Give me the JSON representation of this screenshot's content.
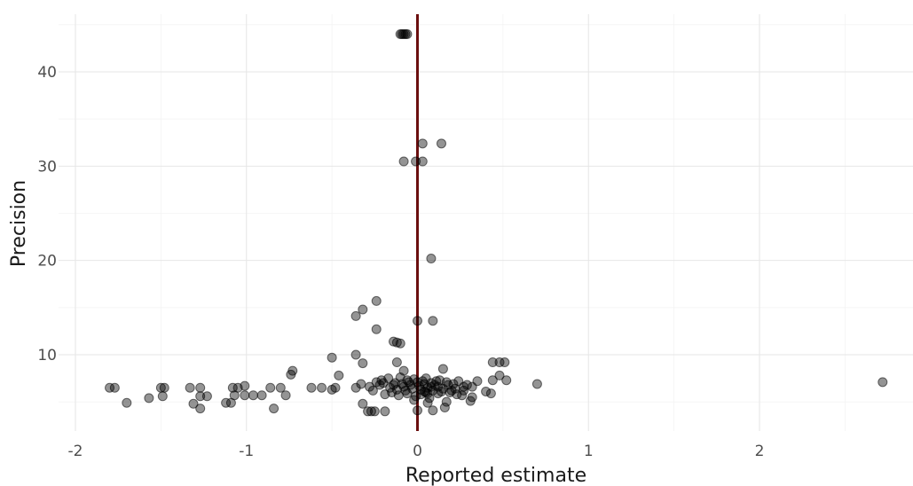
{
  "chart_data": {
    "type": "scatter",
    "title": "",
    "xlabel": "Reported estimate",
    "ylabel": "Precision",
    "xlim": [
      -2.0,
      2.8
    ],
    "ylim": [
      2.0,
      46.0
    ],
    "xticks": [
      -2,
      -1,
      0,
      1,
      2
    ],
    "xtick_labels": [
      "-2",
      "-1",
      "0",
      "1",
      "2"
    ],
    "yticks": [
      10,
      20,
      30,
      40
    ],
    "ytick_labels": [
      "10",
      "20",
      "30",
      "40"
    ],
    "grid": true,
    "legend": "none",
    "reference_line": {
      "orientation": "vertical",
      "x": 0,
      "color": "#6b0f0f"
    },
    "point_color": "#000000",
    "points": [
      [
        -0.1,
        44.0
      ],
      [
        -0.09,
        44.0
      ],
      [
        -0.08,
        44.0
      ],
      [
        -0.07,
        44.0
      ],
      [
        -0.06,
        44.0
      ],
      [
        0.03,
        32.4
      ],
      [
        0.14,
        32.4
      ],
      [
        -0.08,
        30.5
      ],
      [
        -0.01,
        30.5
      ],
      [
        0.03,
        30.5
      ],
      [
        0.08,
        20.2
      ],
      [
        -0.24,
        15.7
      ],
      [
        -0.32,
        14.8
      ],
      [
        -0.36,
        14.1
      ],
      [
        0.0,
        13.6
      ],
      [
        0.09,
        13.6
      ],
      [
        -0.24,
        12.7
      ],
      [
        -0.14,
        11.4
      ],
      [
        -0.12,
        11.3
      ],
      [
        -0.1,
        11.2
      ],
      [
        -0.36,
        10.0
      ],
      [
        -0.5,
        9.7
      ],
      [
        -0.32,
        9.1
      ],
      [
        -0.12,
        9.2
      ],
      [
        0.44,
        9.2
      ],
      [
        0.48,
        9.2
      ],
      [
        0.51,
        9.2
      ],
      [
        0.15,
        8.5
      ],
      [
        -0.73,
        8.3
      ],
      [
        -0.08,
        8.3
      ],
      [
        -0.74,
        7.9
      ],
      [
        -0.46,
        7.8
      ],
      [
        0.48,
        7.8
      ],
      [
        0.44,
        7.3
      ],
      [
        0.52,
        7.3
      ],
      [
        0.35,
        7.2
      ],
      [
        2.72,
        7.1
      ],
      [
        0.7,
        6.9
      ],
      [
        -1.8,
        6.5
      ],
      [
        -1.77,
        6.5
      ],
      [
        -1.5,
        6.5
      ],
      [
        -1.48,
        6.5
      ],
      [
        -1.33,
        6.5
      ],
      [
        -1.27,
        6.5
      ],
      [
        -1.08,
        6.5
      ],
      [
        -1.05,
        6.5
      ],
      [
        -1.01,
        6.7
      ],
      [
        -0.86,
        6.5
      ],
      [
        -0.8,
        6.5
      ],
      [
        -0.62,
        6.5
      ],
      [
        -0.56,
        6.5
      ],
      [
        -0.5,
        6.3
      ],
      [
        -0.48,
        6.5
      ],
      [
        -0.36,
        6.5
      ],
      [
        -0.33,
        6.9
      ],
      [
        -1.49,
        5.6
      ],
      [
        -1.57,
        5.4
      ],
      [
        -1.7,
        4.9
      ],
      [
        -1.31,
        4.8
      ],
      [
        -1.27,
        4.3
      ],
      [
        -1.27,
        5.6
      ],
      [
        -1.23,
        5.6
      ],
      [
        -1.12,
        4.9
      ],
      [
        -1.09,
        4.9
      ],
      [
        -1.07,
        5.7
      ],
      [
        -1.01,
        5.7
      ],
      [
        -0.96,
        5.7
      ],
      [
        -0.91,
        5.7
      ],
      [
        -0.84,
        4.3
      ],
      [
        -0.77,
        5.7
      ],
      [
        -0.32,
        4.8
      ],
      [
        -0.27,
        4.0
      ],
      [
        -0.29,
        4.0
      ],
      [
        -0.25,
        4.0
      ],
      [
        -0.19,
        4.0
      ],
      [
        0.0,
        4.1
      ],
      [
        0.09,
        4.1
      ],
      [
        0.16,
        4.4
      ],
      [
        0.17,
        5.0
      ],
      [
        0.31,
        5.1
      ],
      [
        0.32,
        5.5
      ],
      [
        0.43,
        5.9
      ],
      [
        0.4,
        6.1
      ],
      [
        0.32,
        6.6
      ],
      [
        0.27,
        6.2
      ],
      [
        0.23,
        5.8
      ],
      [
        -0.24,
        7.1
      ],
      [
        -0.21,
        7.3
      ],
      [
        -0.17,
        7.5
      ],
      [
        -0.14,
        6.8
      ],
      [
        -0.12,
        6.3
      ],
      [
        -0.1,
        7.6
      ],
      [
        -0.08,
        6.6
      ],
      [
        -0.06,
        5.9
      ],
      [
        -0.05,
        7.1
      ],
      [
        -0.03,
        6.4
      ],
      [
        -0.02,
        7.4
      ],
      [
        0.01,
        6.7
      ],
      [
        0.02,
        5.8
      ],
      [
        0.03,
        7.2
      ],
      [
        0.04,
        6.1
      ],
      [
        0.05,
        7.5
      ],
      [
        0.06,
        6.5
      ],
      [
        0.07,
        5.4
      ],
      [
        0.08,
        7.0
      ],
      [
        0.09,
        6.2
      ],
      [
        0.1,
        6.8
      ],
      [
        0.12,
        5.9
      ],
      [
        0.13,
        7.3
      ],
      [
        0.15,
        6.4
      ],
      [
        0.17,
        7.1
      ],
      [
        0.19,
        6.0
      ],
      [
        0.21,
        6.9
      ],
      [
        0.24,
        7.2
      ],
      [
        0.27,
        6.6
      ],
      [
        -0.28,
        6.6
      ],
      [
        -0.26,
        6.2
      ],
      [
        -0.22,
        6.8
      ],
      [
        -0.19,
        5.8
      ],
      [
        -0.16,
        6.5
      ],
      [
        -0.13,
        7.0
      ],
      [
        -0.11,
        5.7
      ],
      [
        -0.09,
        6.9
      ],
      [
        -0.07,
        6.2
      ],
      [
        -0.04,
        6.8
      ],
      [
        -0.01,
        5.6
      ],
      [
        0.0,
        7.1
      ],
      [
        0.02,
        6.3
      ],
      [
        0.04,
        6.9
      ],
      [
        0.06,
        5.9
      ],
      [
        0.08,
        6.6
      ],
      [
        0.11,
        7.2
      ],
      [
        0.14,
        6.1
      ],
      [
        0.18,
        6.8
      ],
      [
        0.22,
        6.4
      ],
      [
        0.26,
        5.7
      ],
      [
        0.29,
        6.8
      ],
      [
        -0.2,
        7.0
      ],
      [
        -0.15,
        6.0
      ],
      [
        -0.06,
        7.3
      ],
      [
        0.05,
        6.0
      ],
      [
        0.12,
        6.6
      ],
      [
        0.2,
        6.2
      ],
      [
        -0.02,
        5.2
      ],
      [
        0.06,
        4.9
      ]
    ]
  }
}
